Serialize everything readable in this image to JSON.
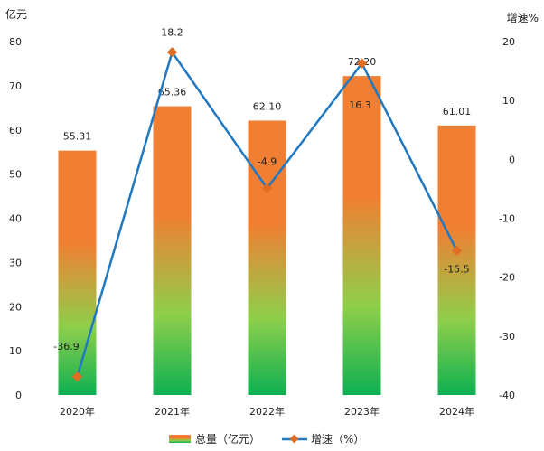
{
  "chart_data": {
    "type": "bar",
    "categories": [
      "2020年",
      "2021年",
      "2022年",
      "2023年",
      "2024年"
    ],
    "series": [
      {
        "name": "总量（亿元）",
        "type": "bar",
        "axis": "left",
        "values": [
          55.31,
          65.36,
          62.1,
          72.2,
          61.01
        ],
        "labels": [
          "55.31",
          "65.36",
          "62.10",
          "72.20",
          "61.01"
        ]
      },
      {
        "name": "增速（%）",
        "type": "line",
        "axis": "right",
        "values": [
          -36.9,
          18.2,
          -4.9,
          16.3,
          -15.5
        ],
        "labels": [
          "-36.9",
          "18.2",
          "-4.9",
          "16.3",
          "-15.5"
        ]
      }
    ],
    "y_left": {
      "label": "亿元",
      "min": 0,
      "max": 80,
      "ticks": [
        0,
        10,
        20,
        30,
        40,
        50,
        60,
        70,
        80
      ]
    },
    "y_right": {
      "label": "增速%",
      "min": -40,
      "max": 20,
      "ticks": [
        -40,
        -30,
        -20,
        -10,
        0,
        10,
        20
      ]
    },
    "grid": false,
    "legend": "bottom",
    "colors": {
      "bar_top": "#f07f33",
      "bar_mid": "#8fcf4a",
      "bar_bottom": "#0db052",
      "line": "#1f78c1",
      "marker": "#e06d22"
    }
  }
}
